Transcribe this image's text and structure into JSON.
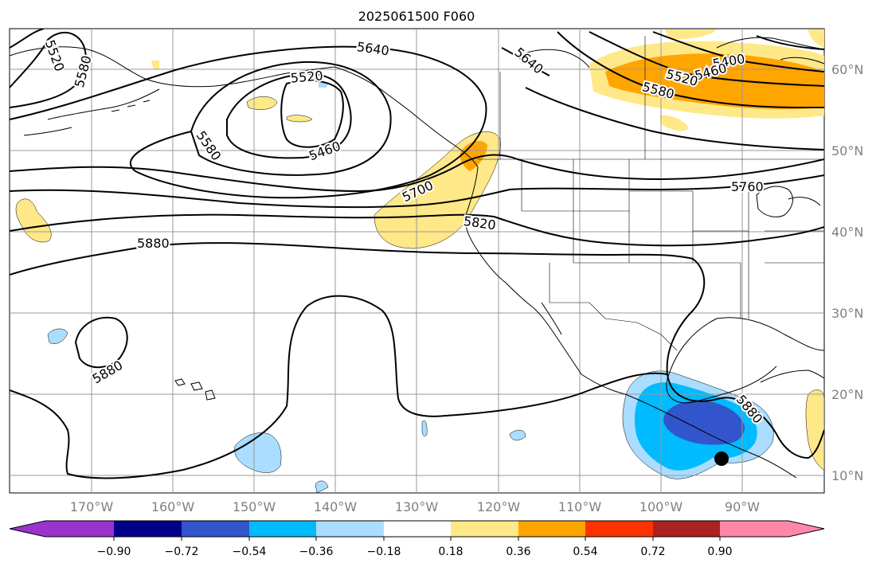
{
  "title": "2025061500 F060",
  "longitude_labels": [
    "170°W",
    "160°W",
    "150°W",
    "140°W",
    "130°W",
    "120°W",
    "110°W",
    "100°W",
    "90°W"
  ],
  "latitude_labels": [
    "60°N",
    "50°N",
    "40°N",
    "30°N",
    "20°N",
    "10°N"
  ],
  "contour_labels": [
    "5520",
    "5580",
    "5640",
    "5520",
    "5460",
    "5580",
    "5700",
    "5820",
    "5880",
    "5640",
    "5400",
    "5460",
    "5520",
    "5580",
    "5760",
    "5880",
    "5880"
  ],
  "colorbar": {
    "tick_labels": [
      "−0.90",
      "−0.72",
      "−0.54",
      "−0.36",
      "−0.18",
      "0.18",
      "0.36",
      "0.54",
      "0.72",
      "0.90"
    ],
    "colors": [
      "#9933cc",
      "#000088",
      "#3355cc",
      "#00bbff",
      "#aaddff",
      "#ffffff",
      "#ffe888",
      "#ffa500",
      "#ff3300",
      "#aa2222",
      "#ff88aa"
    ]
  },
  "colors": {
    "land_line": "#000000",
    "grid": "#999999",
    "axis_text": "#808080",
    "contour": "#000000"
  },
  "markers": [
    {
      "name": "storm-center",
      "lon": -92.5,
      "lat": 12.3
    }
  ]
}
